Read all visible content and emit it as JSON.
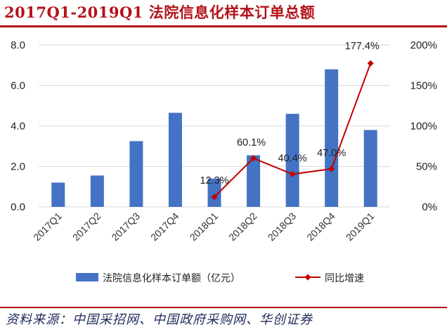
{
  "header": {
    "title": "2017Q1-2019Q1 法院信息化样本订单总额"
  },
  "footer": {
    "source": "资料来源：中国采招网、中国政府采购网、华创证券"
  },
  "chart_data": {
    "type": "bar+line",
    "title": "2017Q1-2019Q1 法院信息化样本订单总额",
    "categories": [
      "2017Q1",
      "2017Q2",
      "2017Q3",
      "2017Q4",
      "2018Q1",
      "2018Q2",
      "2018Q3",
      "2018Q4",
      "2019Q1"
    ],
    "series": [
      {
        "name": "法院信息化样本订单额（亿元）",
        "type": "bar",
        "axis": "left",
        "values": [
          1.2,
          1.55,
          3.25,
          4.65,
          1.4,
          2.55,
          4.6,
          6.8,
          3.8
        ],
        "color": "#4472c4"
      },
      {
        "name": "同比增速",
        "type": "line",
        "axis": "right",
        "unit": "%",
        "values": [
          null,
          null,
          null,
          null,
          12.3,
          60.1,
          40.4,
          47.0,
          177.4
        ],
        "labels": [
          "",
          "",
          "",
          "",
          "12.3%",
          "60.1%",
          "40.4%",
          "47.0%",
          "177.4%"
        ],
        "color": "#c00000"
      }
    ],
    "y_left": {
      "min": 0,
      "max": 8,
      "ticks": [
        "0.0",
        "2.0",
        "4.0",
        "6.0",
        "8.0"
      ]
    },
    "y_right": {
      "min": 0,
      "max": 200,
      "ticks": [
        "0%",
        "50%",
        "100%",
        "150%",
        "200%"
      ]
    },
    "legend": {
      "position": "bottom"
    },
    "grid": true
  }
}
